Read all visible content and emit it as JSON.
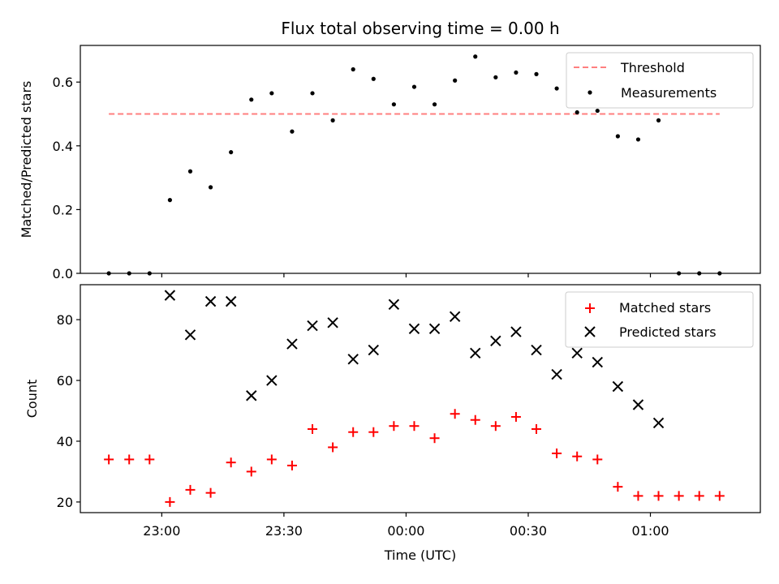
{
  "chart_data": [
    {
      "type": "scatter",
      "title": "Flux total observing time = 0.00 h",
      "xlabel": "",
      "ylabel": "Matched/Predicted stars",
      "ylim": [
        0.0,
        0.715
      ],
      "xlim": [
        "22:40",
        "01:27"
      ],
      "yticks": [
        0.0,
        0.2,
        0.4,
        0.6
      ],
      "ytick_labels": [
        "0.0",
        "0.2",
        "0.4",
        "0.6"
      ],
      "legend_position": "top-right",
      "threshold": {
        "name": "Threshold",
        "value": 0.5,
        "color": "#ff7f7f",
        "x_range": [
          "22:47",
          "01:17"
        ]
      },
      "series": [
        {
          "name": "Measurements",
          "color": "#000000",
          "marker": "dot",
          "x": [
            "22:47",
            "22:52",
            "22:57",
            "23:02",
            "23:07",
            "23:12",
            "23:17",
            "23:22",
            "23:27",
            "23:32",
            "23:37",
            "23:42",
            "23:47",
            "23:52",
            "23:57",
            "00:02",
            "00:07",
            "00:12",
            "00:17",
            "00:22",
            "00:27",
            "00:32",
            "00:37",
            "00:42",
            "00:47",
            "00:52",
            "00:57",
            "01:02",
            "01:07",
            "01:12",
            "01:17"
          ],
          "y": [
            0.0,
            0.0,
            0.0,
            0.23,
            0.32,
            0.27,
            0.38,
            0.545,
            0.565,
            0.445,
            0.565,
            0.48,
            0.64,
            0.61,
            0.53,
            0.585,
            0.53,
            0.605,
            0.68,
            0.615,
            0.63,
            0.625,
            0.58,
            0.505,
            0.51,
            0.43,
            0.42,
            0.48,
            0.0,
            0.0,
            0.0
          ]
        }
      ]
    },
    {
      "type": "scatter",
      "title": "",
      "xlabel": "Time (UTC)",
      "ylabel": "Count",
      "ylim": [
        16.5,
        91.5
      ],
      "xlim": [
        "22:40",
        "01:27"
      ],
      "yticks": [
        20,
        40,
        60,
        80
      ],
      "ytick_labels": [
        "20",
        "40",
        "60",
        "80"
      ],
      "xticks": [
        "23:00",
        "23:30",
        "00:00",
        "00:30",
        "01:00"
      ],
      "xtick_labels": [
        "23:00",
        "23:30",
        "00:00",
        "00:30",
        "01:00"
      ],
      "legend_position": "top-right",
      "series": [
        {
          "name": "Matched stars",
          "color": "#ff0000",
          "marker": "plus",
          "x": [
            "22:47",
            "22:52",
            "22:57",
            "23:02",
            "23:07",
            "23:12",
            "23:17",
            "23:22",
            "23:27",
            "23:32",
            "23:37",
            "23:42",
            "23:47",
            "23:52",
            "23:57",
            "00:02",
            "00:07",
            "00:12",
            "00:17",
            "00:22",
            "00:27",
            "00:32",
            "00:37",
            "00:42",
            "00:47",
            "00:52",
            "00:57",
            "01:02",
            "01:07",
            "01:12",
            "01:17"
          ],
          "y": [
            34,
            34,
            34,
            20,
            24,
            23,
            33,
            30,
            34,
            32,
            44,
            38,
            43,
            43,
            45,
            45,
            41,
            49,
            47,
            45,
            48,
            44,
            36,
            35,
            34,
            25,
            22,
            22,
            22,
            22,
            22
          ]
        },
        {
          "name": "Predicted stars",
          "color": "#000000",
          "marker": "x",
          "x": [
            "23:02",
            "23:07",
            "23:12",
            "23:17",
            "23:22",
            "23:27",
            "23:32",
            "23:37",
            "23:42",
            "23:47",
            "23:52",
            "23:57",
            "00:02",
            "00:07",
            "00:12",
            "00:17",
            "00:22",
            "00:27",
            "00:32",
            "00:37",
            "00:42",
            "00:47",
            "00:52",
            "00:57",
            "01:02"
          ],
          "y": [
            88,
            75,
            86,
            86,
            55,
            60,
            72,
            78,
            79,
            67,
            70,
            85,
            77,
            77,
            81,
            69,
            73,
            76,
            70,
            62,
            69,
            66,
            58,
            52,
            46
          ]
        }
      ]
    }
  ]
}
